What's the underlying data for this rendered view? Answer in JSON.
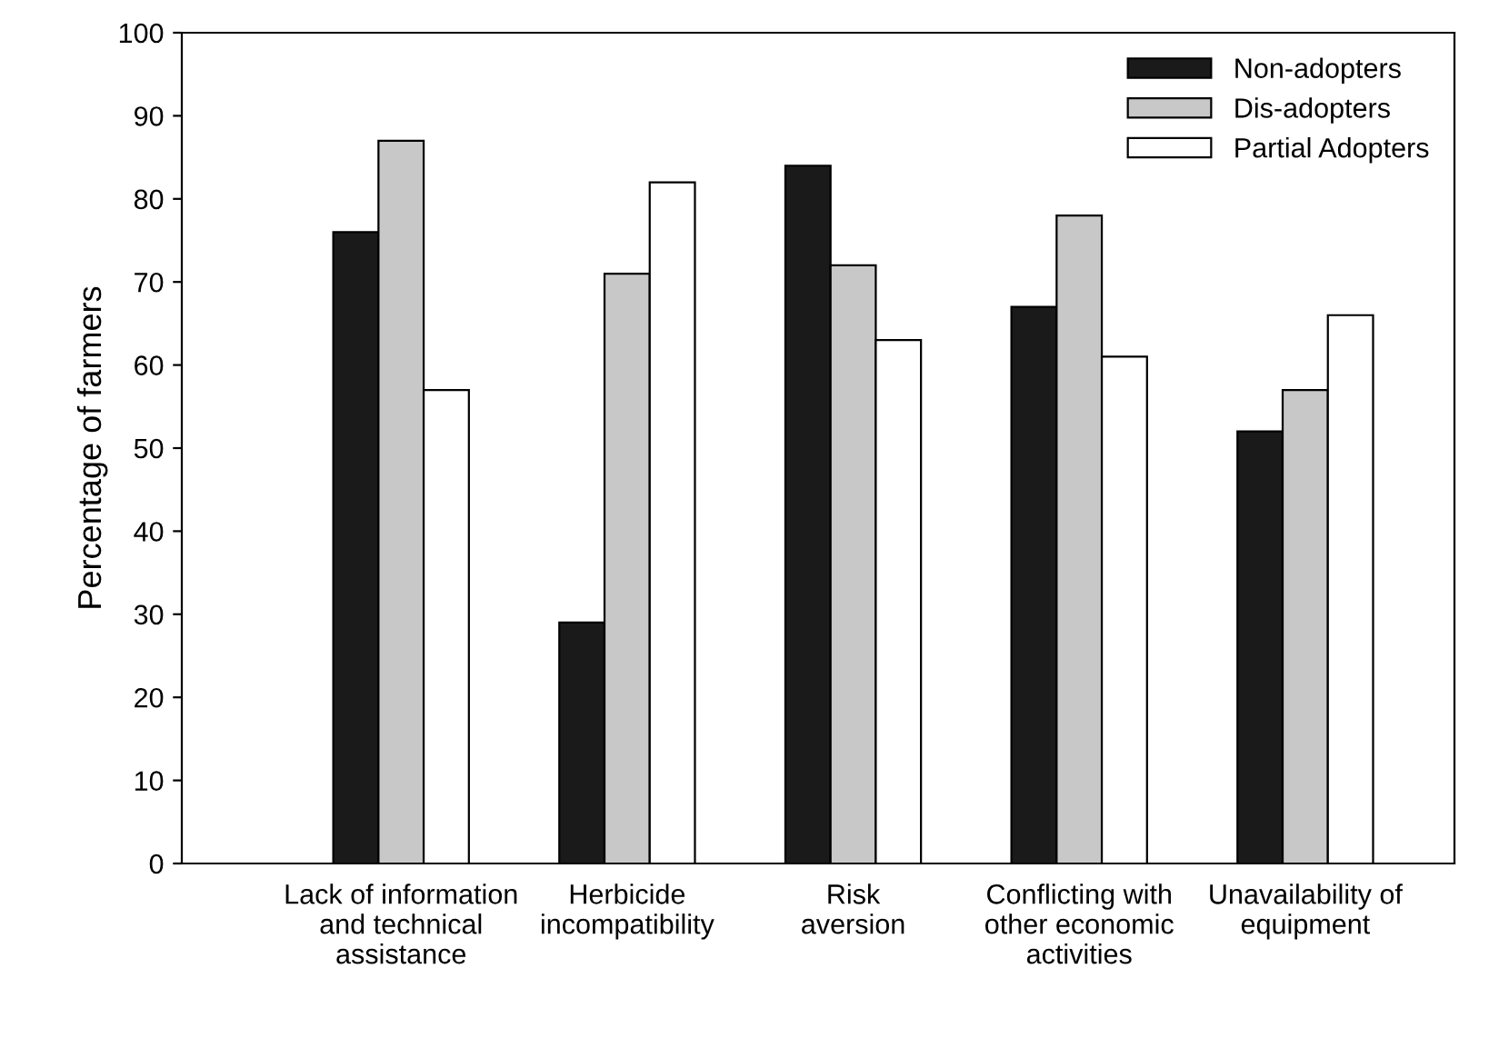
{
  "chart_data": {
    "type": "bar",
    "ylabel": "Percentage of farmers",
    "categories": [
      "Lack of information\nand technical\nassistance",
      "Herbicide\nincompatibility",
      "Risk\naversion",
      "Conflicting with\nother economic\nactivities",
      "Unavailability of\nequipment"
    ],
    "series": [
      {
        "name": "Non-adopters",
        "color": "#1a1a1a",
        "values": [
          76,
          29,
          84,
          67,
          52
        ]
      },
      {
        "name": "Dis-adopters",
        "color": "#c8c8c8",
        "values": [
          87,
          71,
          72,
          78,
          57
        ]
      },
      {
        "name": "Partial Adopters",
        "color": "#ffffff",
        "values": [
          57,
          82,
          63,
          61,
          66
        ]
      }
    ],
    "ylim": [
      0,
      100
    ],
    "yticks": [
      0,
      10,
      20,
      30,
      40,
      50,
      60,
      70,
      80,
      90,
      100
    ],
    "grid": false,
    "legend": "top right"
  }
}
